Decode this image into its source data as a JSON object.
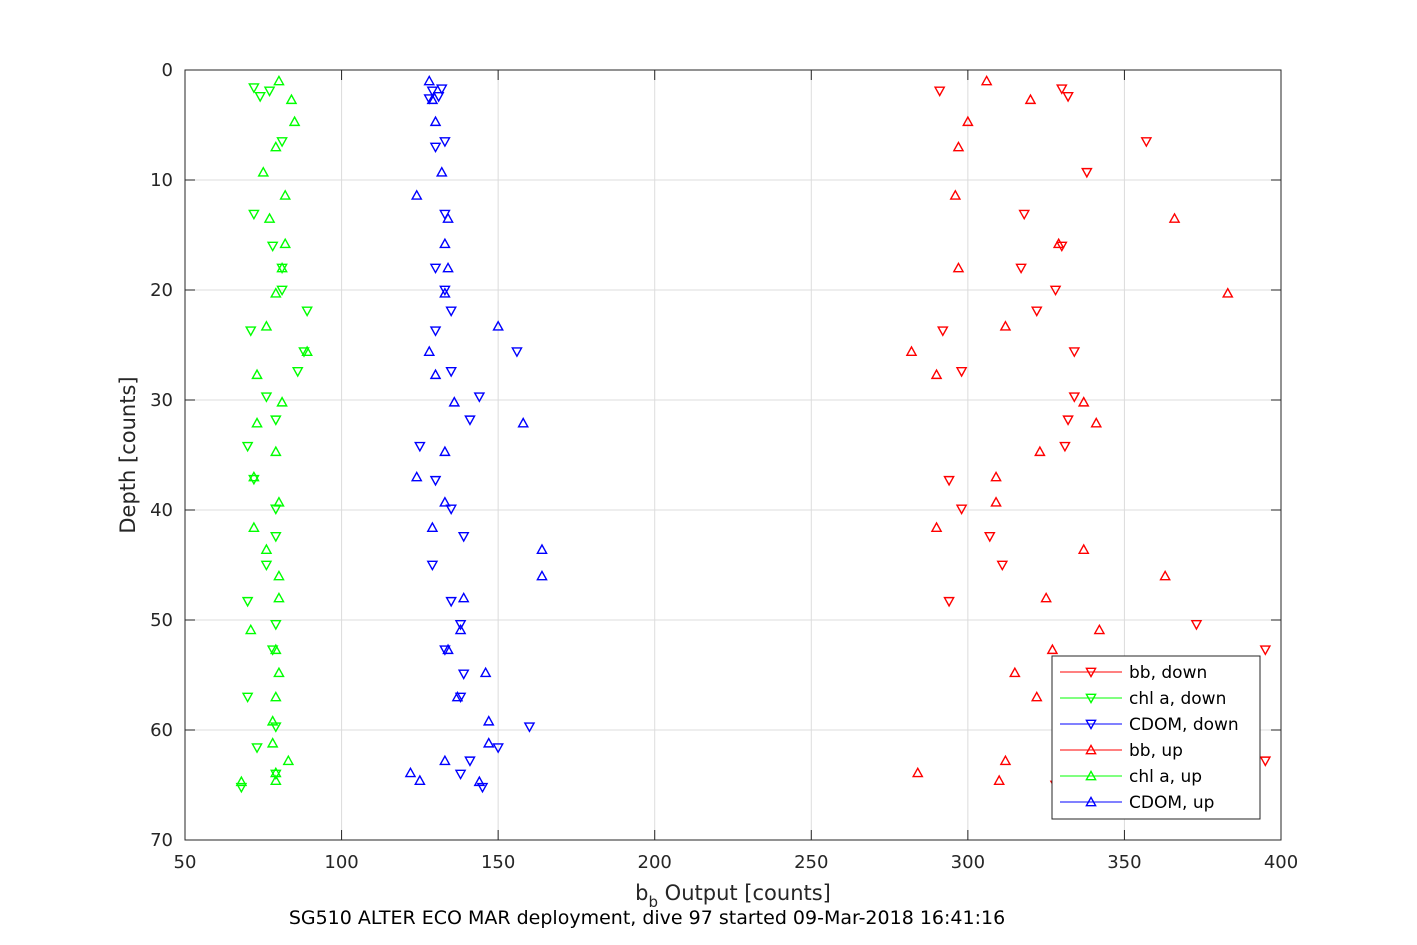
{
  "chart_data": {
    "type": "scatter",
    "xlabel_main": "b",
    "xlabel_sub": "b",
    "xlabel_rest": " Output [counts]",
    "ylabel": "Depth [counts]",
    "caption": "SG510 ALTER ECO MAR deployment, dive 97 started 09-Mar-2018 16:41:16",
    "xlim": [
      50,
      400
    ],
    "ylim": [
      0,
      70
    ],
    "y_reversed": true,
    "x_ticks": [
      50,
      100,
      150,
      200,
      250,
      300,
      350,
      400
    ],
    "y_ticks": [
      0,
      10,
      20,
      30,
      40,
      50,
      60,
      70
    ],
    "grid": true,
    "legend_position": "bottom-right",
    "series": [
      {
        "name": "bb, down",
        "color": "#ff0000",
        "marker": "triangle-down",
        "points": [
          [
            291,
            1.9
          ],
          [
            330,
            1.7
          ],
          [
            332,
            2.4
          ],
          [
            357,
            6.5
          ],
          [
            338,
            9.3
          ],
          [
            318,
            13.1
          ],
          [
            330,
            16.0
          ],
          [
            317,
            18.0
          ],
          [
            328,
            20.0
          ],
          [
            322,
            21.9
          ],
          [
            292,
            23.7
          ],
          [
            334,
            25.6
          ],
          [
            298,
            27.4
          ],
          [
            334,
            29.7
          ],
          [
            332,
            31.8
          ],
          [
            331,
            34.2
          ],
          [
            294,
            37.3
          ],
          [
            298,
            39.9
          ],
          [
            307,
            42.4
          ],
          [
            311,
            45.0
          ],
          [
            294,
            48.3
          ],
          [
            373,
            50.4
          ],
          [
            395,
            52.7
          ],
          [
            334,
            56.6
          ],
          [
            395,
            62.8
          ],
          [
            328,
            65.0
          ]
        ]
      },
      {
        "name": "chl a, down",
        "color": "#00ff00",
        "marker": "triangle-down",
        "points": [
          [
            72,
            1.6
          ],
          [
            77,
            1.9
          ],
          [
            74,
            2.4
          ],
          [
            81,
            6.5
          ],
          [
            72,
            13.1
          ],
          [
            78,
            16.0
          ],
          [
            81,
            18.0
          ],
          [
            81,
            20.0
          ],
          [
            89,
            21.9
          ],
          [
            71,
            23.7
          ],
          [
            88,
            25.6
          ],
          [
            86,
            27.4
          ],
          [
            76,
            29.7
          ],
          [
            79,
            31.8
          ],
          [
            70,
            34.2
          ],
          [
            72,
            37.2
          ],
          [
            79,
            39.9
          ],
          [
            79,
            42.4
          ],
          [
            76,
            45.0
          ],
          [
            70,
            48.3
          ],
          [
            79,
            50.4
          ],
          [
            78,
            52.7
          ],
          [
            70,
            57.0
          ],
          [
            79,
            59.7
          ],
          [
            73,
            61.6
          ],
          [
            79,
            64.0
          ],
          [
            68,
            65.2
          ]
        ]
      },
      {
        "name": "CDOM, down",
        "color": "#0000ff",
        "marker": "triangle-down",
        "points": [
          [
            132,
            1.7
          ],
          [
            129,
            1.9
          ],
          [
            131,
            2.4
          ],
          [
            128,
            2.6
          ],
          [
            133,
            6.5
          ],
          [
            130,
            7.0
          ],
          [
            133,
            13.1
          ],
          [
            130,
            18.0
          ],
          [
            133,
            20.0
          ],
          [
            135,
            21.9
          ],
          [
            130,
            23.7
          ],
          [
            156,
            25.6
          ],
          [
            135,
            27.4
          ],
          [
            144,
            29.7
          ],
          [
            141,
            31.8
          ],
          [
            125,
            34.2
          ],
          [
            130,
            37.3
          ],
          [
            135,
            39.9
          ],
          [
            139,
            42.4
          ],
          [
            129,
            45.0
          ],
          [
            135,
            48.3
          ],
          [
            138,
            50.4
          ],
          [
            133,
            52.7
          ],
          [
            139,
            54.9
          ],
          [
            138,
            57.0
          ],
          [
            160,
            59.7
          ],
          [
            150,
            61.6
          ],
          [
            141,
            62.8
          ],
          [
            138,
            64.0
          ],
          [
            145,
            65.2
          ]
        ]
      },
      {
        "name": "bb, up",
        "color": "#ff0000",
        "marker": "triangle-up",
        "points": [
          [
            306,
            1.0
          ],
          [
            320,
            2.7
          ],
          [
            300,
            4.7
          ],
          [
            297,
            7.0
          ],
          [
            296,
            11.4
          ],
          [
            366,
            13.5
          ],
          [
            329,
            15.8
          ],
          [
            297,
            18.0
          ],
          [
            383,
            20.3
          ],
          [
            312,
            23.3
          ],
          [
            282,
            25.6
          ],
          [
            290,
            27.7
          ],
          [
            337,
            30.2
          ],
          [
            341,
            32.1
          ],
          [
            323,
            34.7
          ],
          [
            309,
            37.0
          ],
          [
            309,
            39.3
          ],
          [
            290,
            41.6
          ],
          [
            337,
            43.6
          ],
          [
            363,
            46.0
          ],
          [
            325,
            48.0
          ],
          [
            342,
            50.9
          ],
          [
            327,
            52.7
          ],
          [
            315,
            54.8
          ],
          [
            322,
            57.0
          ],
          [
            312,
            62.8
          ],
          [
            284,
            63.9
          ],
          [
            310,
            64.6
          ]
        ]
      },
      {
        "name": "chl a, up",
        "color": "#00ff00",
        "marker": "triangle-up",
        "points": [
          [
            80,
            1.0
          ],
          [
            84,
            2.7
          ],
          [
            85,
            4.7
          ],
          [
            79,
            7.0
          ],
          [
            75,
            9.3
          ],
          [
            82,
            11.4
          ],
          [
            77,
            13.5
          ],
          [
            82,
            15.8
          ],
          [
            81,
            18.0
          ],
          [
            79,
            20.3
          ],
          [
            76,
            23.3
          ],
          [
            89,
            25.6
          ],
          [
            73,
            27.7
          ],
          [
            81,
            30.2
          ],
          [
            73,
            32.1
          ],
          [
            79,
            34.7
          ],
          [
            72,
            37.0
          ],
          [
            80,
            39.3
          ],
          [
            72,
            41.6
          ],
          [
            76,
            43.6
          ],
          [
            80,
            46.0
          ],
          [
            80,
            48.0
          ],
          [
            71,
            50.9
          ],
          [
            79,
            52.7
          ],
          [
            80,
            54.8
          ],
          [
            79,
            57.0
          ],
          [
            78,
            59.2
          ],
          [
            78,
            61.2
          ],
          [
            83,
            62.8
          ],
          [
            79,
            63.9
          ],
          [
            79,
            64.6
          ],
          [
            68,
            64.7
          ]
        ]
      },
      {
        "name": "CDOM, up",
        "color": "#0000ff",
        "marker": "triangle-up",
        "points": [
          [
            128,
            1.0
          ],
          [
            129,
            2.7
          ],
          [
            130,
            4.7
          ],
          [
            132,
            9.3
          ],
          [
            124,
            11.4
          ],
          [
            134,
            13.5
          ],
          [
            133,
            15.8
          ],
          [
            134,
            18.0
          ],
          [
            133,
            20.3
          ],
          [
            150,
            23.3
          ],
          [
            128,
            25.6
          ],
          [
            130,
            27.7
          ],
          [
            136,
            30.2
          ],
          [
            158,
            32.1
          ],
          [
            133,
            34.7
          ],
          [
            124,
            37.0
          ],
          [
            133,
            39.3
          ],
          [
            129,
            41.6
          ],
          [
            164,
            43.6
          ],
          [
            164,
            46.0
          ],
          [
            139,
            48.0
          ],
          [
            138,
            50.9
          ],
          [
            134,
            52.7
          ],
          [
            146,
            54.8
          ],
          [
            137,
            57.0
          ],
          [
            147,
            59.2
          ],
          [
            147,
            61.2
          ],
          [
            133,
            62.8
          ],
          [
            122,
            63.9
          ],
          [
            125,
            64.6
          ],
          [
            144,
            64.7
          ]
        ]
      }
    ]
  }
}
